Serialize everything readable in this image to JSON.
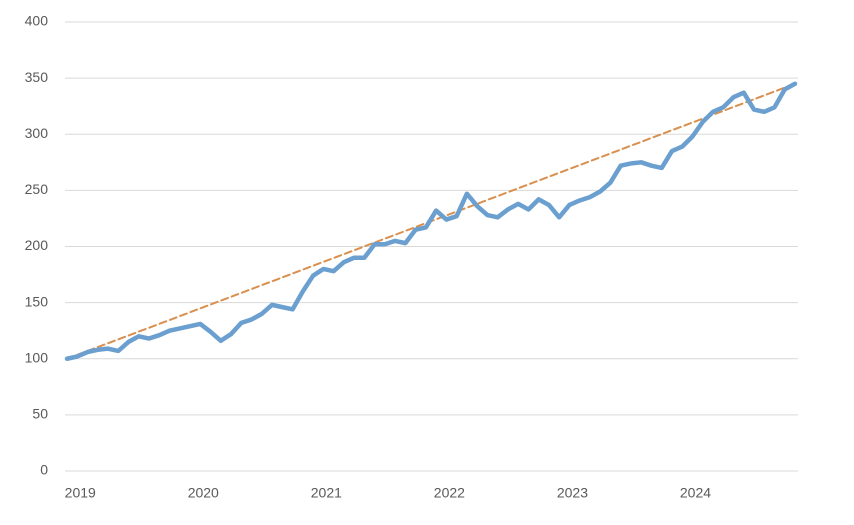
{
  "chart_data": {
    "type": "line",
    "categories": [
      null,
      "2019",
      null,
      null,
      null,
      null,
      null,
      null,
      null,
      null,
      null,
      null,
      null,
      "2020",
      null,
      null,
      null,
      null,
      null,
      null,
      null,
      null,
      null,
      null,
      null,
      "2021",
      null,
      null,
      null,
      null,
      null,
      null,
      null,
      null,
      null,
      null,
      null,
      "2022",
      null,
      null,
      null,
      null,
      null,
      null,
      null,
      null,
      null,
      null,
      null,
      "2023",
      null,
      null,
      null,
      null,
      null,
      null,
      null,
      null,
      null,
      null,
      null,
      "2024",
      null,
      null,
      null,
      null,
      null,
      null,
      null,
      null,
      null,
      null
    ],
    "series": [
      {
        "color": "#6a9fcf",
        "dashed": false,
        "values": [
          100,
          102,
          106,
          108,
          109,
          107,
          115,
          120,
          118,
          121,
          125,
          127,
          129,
          131,
          124,
          116,
          122,
          132,
          135,
          140,
          148,
          146,
          144,
          160,
          174,
          180,
          178,
          186,
          190,
          190,
          202,
          202,
          205,
          203,
          215,
          217,
          232,
          224,
          227,
          247,
          236,
          228,
          226,
          233,
          238,
          233,
          242,
          237,
          226,
          237,
          241,
          244,
          249,
          257,
          272,
          274,
          275,
          272,
          270,
          285,
          289,
          298,
          311,
          320,
          324,
          333,
          337,
          322,
          320,
          324,
          340,
          345
        ]
      },
      {
        "color": "#d98f4e",
        "dashed": true,
        "values": [
          100,
          103.5,
          106.9,
          110.4,
          113.8,
          117.3,
          120.7,
          124.2,
          127.6,
          131.1,
          134.5,
          138,
          141.4,
          144.9,
          148.3,
          151.8,
          155.2,
          158.7,
          162.1,
          165.6,
          169,
          172.5,
          175.9,
          179.4,
          182.8,
          186.3,
          189.7,
          193.2,
          196.6,
          200.1,
          203.5,
          207,
          210.4,
          213.9,
          217.3,
          220.8,
          224.2,
          227.7,
          231.1,
          234.6,
          238,
          241.5,
          244.9,
          248.4,
          251.8,
          255.3,
          258.7,
          262.2,
          265.6,
          269.1,
          272.5,
          276,
          279.4,
          282.9,
          286.3,
          289.8,
          293.2,
          296.7,
          300.1,
          303.6,
          307,
          310.5,
          313.9,
          317.4,
          320.8,
          324.3,
          327.7,
          331.2,
          334.6,
          338.1,
          341.5,
          345
        ]
      }
    ],
    "ylim": [
      0,
      400
    ],
    "yticks": [
      0,
      50,
      100,
      150,
      200,
      250,
      300,
      350,
      400
    ],
    "grid": true
  }
}
